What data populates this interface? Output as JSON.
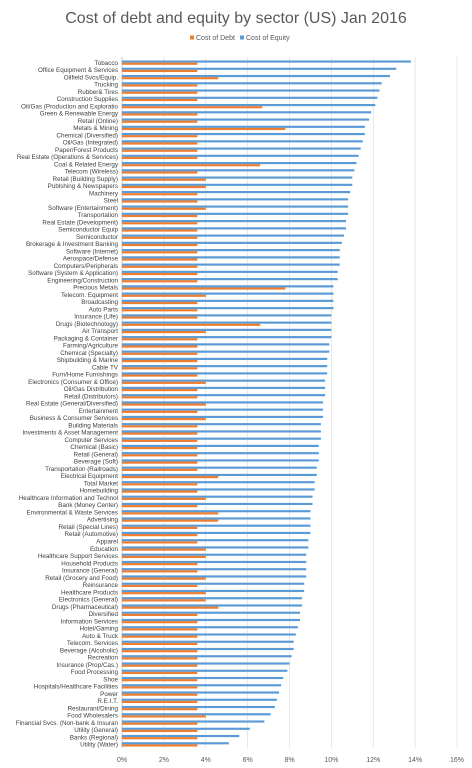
{
  "chart_data": {
    "type": "bar",
    "orientation": "horizontal",
    "title": "Cost of debt and equity by sector (US) Jan 2016",
    "xlabel": "",
    "ylabel": "",
    "xlim": [
      0,
      16
    ],
    "x_ticks": [
      "0%",
      "2%",
      "4%",
      "6%",
      "8%",
      "10%",
      "12%",
      "14%",
      "16%"
    ],
    "grid": true,
    "legend": "top-center",
    "colors": {
      "Cost of Debt": "#ED7D31",
      "Cost of Equity": "#5B9BD5"
    },
    "categories": [
      "Tobacco",
      "Office Equipment & Services",
      "Oilfield Svcs/Equip.",
      "Trucking",
      "Rubber& Tires",
      "Construction Supplies",
      "Oil/Gas (Production and Exploratio",
      "Green & Renewable Energy",
      "Retail (Online)",
      "Metals & Mining",
      "Chemical (Diversified)",
      "Oil/Gas (Integrated)",
      "Paper/Forest Products",
      "Real Estate (Operations & Services)",
      "Coal & Related Energy",
      "Telecom (Wireless)",
      "Retail (Building Supply)",
      "Publshing & Newspapers",
      "Machinery",
      "Steel",
      "Software (Entertainment)",
      "Transportation",
      "Real Estate (Development)",
      "Semiconductor Equip",
      "Semiconductor",
      "Brokerage & Investment Banking",
      "Software (Internet)",
      "Aerospace/Defense",
      "Computers/Peripherals",
      "Software (System & Application)",
      "Engineering/Construction",
      "Precious Metals",
      "Telecom. Equipment",
      "Broadcasting",
      "Auto Parts",
      "Insurance (Life)",
      "Drugs (Biotechnology)",
      "Air Transport",
      "Packaging & Container",
      "Farming/Agriculture",
      "Chemical (Specialty)",
      "Shipbuilding & Marine",
      "Cable TV",
      "Furn/Home Furnishings",
      "Electronics (Consumer & Office)",
      "Oil/Gas Distribution",
      "Retail (Distributors)",
      "Real Estate (General/Diversified)",
      "Entertainment",
      "Business & Consumer Services",
      "Building Materials",
      "Investments & Asset Management",
      "Computer Services",
      "Chemical (Basic)",
      "Retail (General)",
      "Beverage (Soft)",
      "Transportation (Railroads)",
      "Electrical Equipment",
      "Total Market",
      "Homebuilding",
      "Healthcare Information and Technol",
      "Bank (Money Center)",
      "Environmental & Waste Services",
      "Advertising",
      "Retail (Special Lines)",
      "Retail (Automotive)",
      "Apparel",
      "Education",
      "Healthcare Support Services",
      "Household Products",
      "Insurance (General)",
      "Retail (Grocery and Food)",
      "Reinsurance",
      "Healthcare Products",
      "Electronics (General)",
      "Drugs (Pharmaceutical)",
      "Diversified",
      "Information Services",
      "Hotel/Gaming",
      "Auto & Truck",
      "Telecom. Services",
      "Beverage (Alcoholic)",
      "Recreation",
      "Insurance (Prop/Cas.)",
      "Food Processing",
      "Shoe",
      "Hospitals/Healthcare Facilities",
      "Power",
      "R.E.I.T.",
      "Restaurant/Dining",
      "Food Wholesalers",
      "Financial Svcs. (Non-bank & Insuran",
      "Utility (General)",
      "Banks (Regional)",
      "Utility (Water)"
    ],
    "series": [
      {
        "name": "Cost of Debt",
        "values": [
          3.6,
          3.6,
          4.6,
          3.6,
          3.6,
          3.6,
          6.7,
          3.6,
          3.6,
          7.8,
          3.6,
          3.6,
          3.6,
          3.6,
          6.6,
          3.6,
          4.0,
          4.0,
          3.6,
          3.6,
          4.0,
          3.6,
          3.6,
          3.6,
          3.6,
          3.6,
          3.6,
          3.6,
          3.6,
          3.6,
          3.6,
          7.8,
          4.0,
          3.6,
          3.6,
          3.6,
          6.6,
          4.0,
          3.6,
          3.6,
          3.6,
          3.6,
          3.6,
          3.6,
          4.0,
          3.6,
          3.6,
          4.0,
          3.6,
          4.0,
          3.6,
          3.6,
          3.6,
          3.6,
          3.6,
          3.6,
          3.6,
          4.6,
          3.6,
          3.6,
          4.0,
          3.6,
          4.6,
          4.6,
          3.6,
          3.6,
          3.6,
          4.0,
          4.0,
          3.6,
          3.6,
          4.0,
          3.6,
          4.0,
          4.0,
          4.6,
          3.6,
          3.6,
          3.6,
          3.6,
          3.6,
          3.6,
          3.6,
          3.6,
          3.6,
          3.6,
          3.6,
          3.6,
          3.6,
          3.6,
          4.0,
          3.6,
          3.6,
          3.6,
          3.6
        ]
      },
      {
        "name": "Cost of Equity",
        "values": [
          13.8,
          13.1,
          12.8,
          12.4,
          12.3,
          12.2,
          12.1,
          11.9,
          11.8,
          11.6,
          11.6,
          11.5,
          11.4,
          11.3,
          11.2,
          11.1,
          11.0,
          11.0,
          10.9,
          10.8,
          10.8,
          10.8,
          10.7,
          10.7,
          10.6,
          10.5,
          10.4,
          10.4,
          10.4,
          10.3,
          10.3,
          10.1,
          10.1,
          10.1,
          10.1,
          10.0,
          10.0,
          10.0,
          10.0,
          9.9,
          9.9,
          9.8,
          9.8,
          9.8,
          9.7,
          9.7,
          9.7,
          9.6,
          9.6,
          9.6,
          9.5,
          9.5,
          9.5,
          9.4,
          9.4,
          9.4,
          9.3,
          9.3,
          9.2,
          9.2,
          9.1,
          9.1,
          9.0,
          9.0,
          9.0,
          9.0,
          8.9,
          8.9,
          8.8,
          8.8,
          8.8,
          8.8,
          8.7,
          8.7,
          8.6,
          8.6,
          8.5,
          8.5,
          8.4,
          8.3,
          8.2,
          8.2,
          8.1,
          8.0,
          7.9,
          7.7,
          7.6,
          7.5,
          7.4,
          7.3,
          7.1,
          6.8,
          6.1,
          5.6,
          5.1
        ]
      }
    ]
  }
}
